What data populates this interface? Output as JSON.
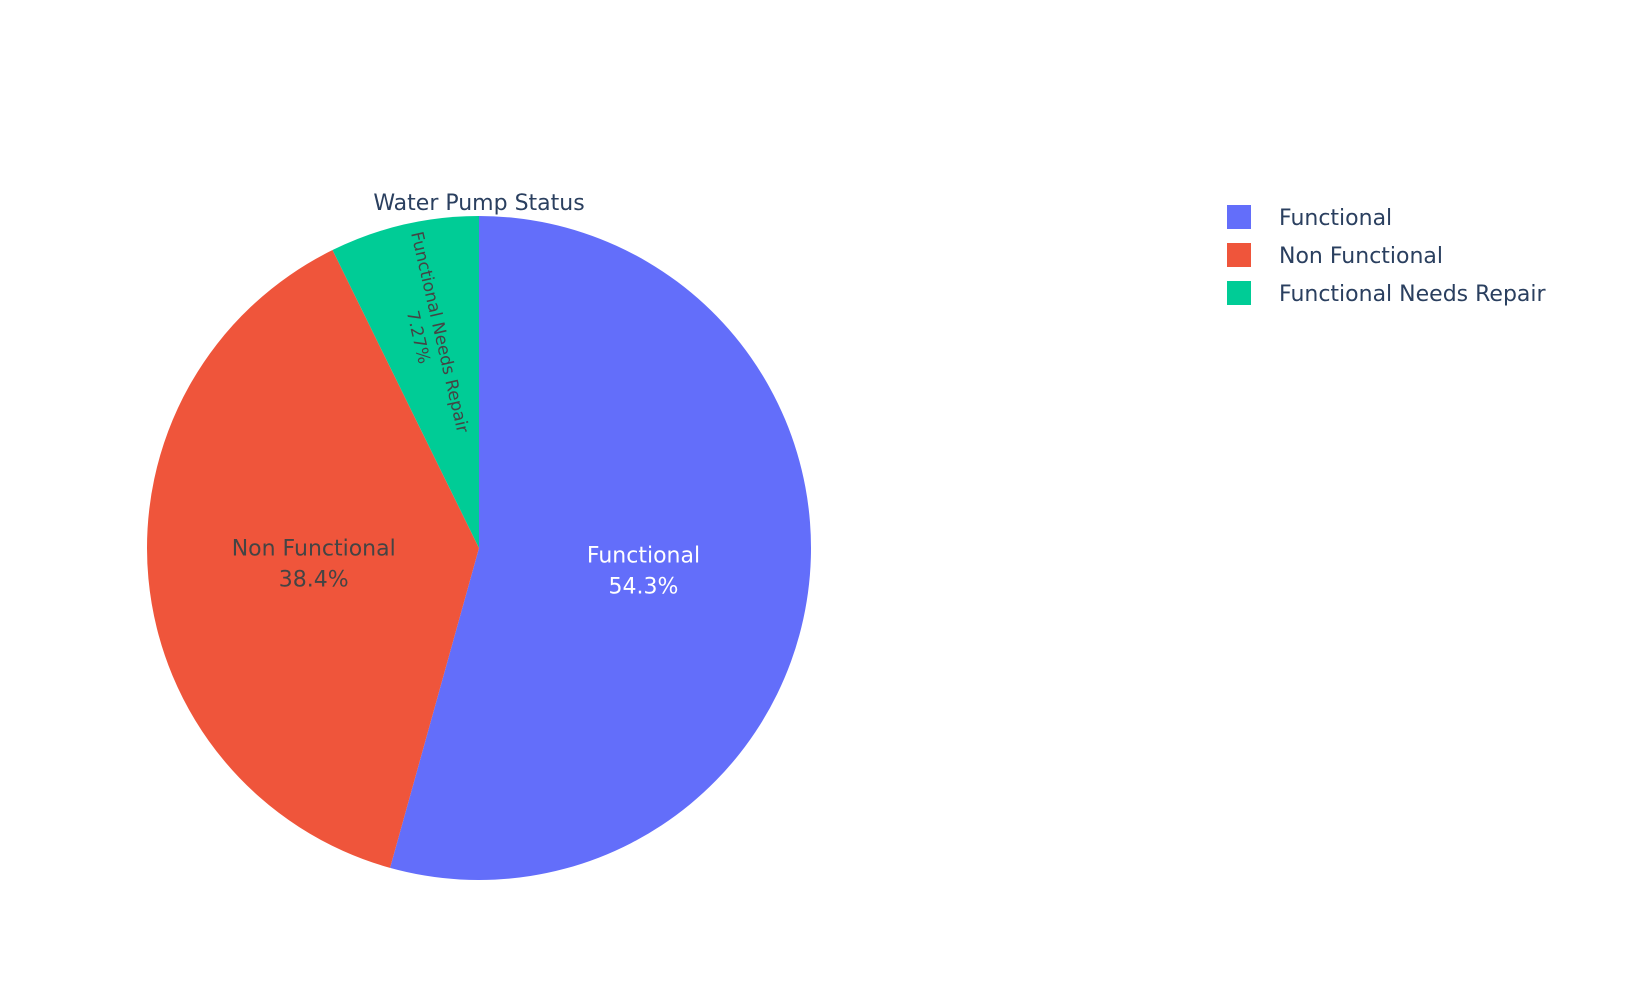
{
  "chart_data": {
    "type": "pie",
    "title": "Water Pump Status",
    "slices": [
      {
        "label": "Functional",
        "percent": 54.3,
        "percent_text": "54.3%",
        "color": "#636efa",
        "text_color": "#ffffff"
      },
      {
        "label": "Non Functional",
        "percent": 38.4,
        "percent_text": "38.4%",
        "color": "#ef553b",
        "text_color": "#444444"
      },
      {
        "label": "Functional Needs Repair",
        "percent": 7.27,
        "percent_text": "7.27%",
        "color": "#00cc96",
        "text_color": "#444444"
      }
    ],
    "legend": {
      "placement": "top-right",
      "entries": [
        "Functional",
        "Non Functional",
        "Functional Needs Repair"
      ]
    },
    "direction": "clockwise",
    "start": "12 o'clock"
  }
}
